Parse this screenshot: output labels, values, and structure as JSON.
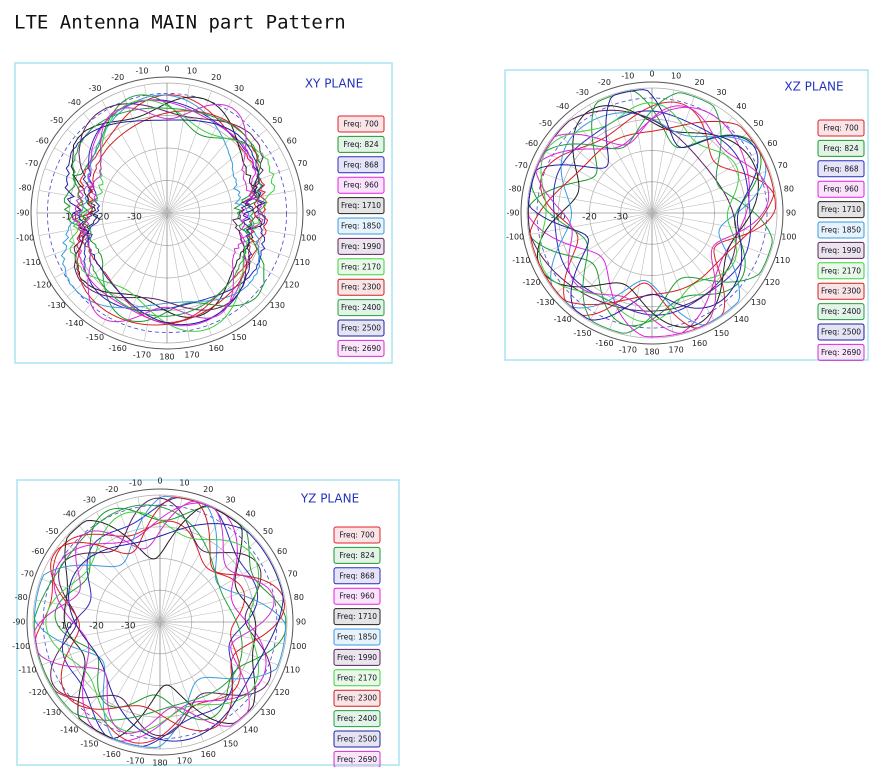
{
  "title": "LTE Antenna MAIN part Pattern",
  "angle_labels": [
    0,
    10,
    20,
    30,
    40,
    50,
    60,
    70,
    80,
    90,
    100,
    110,
    120,
    130,
    140,
    150,
    160,
    170,
    180,
    -170,
    -160,
    -150,
    -140,
    -130,
    -120,
    -110,
    -100,
    -90,
    -80,
    -70,
    -60,
    -50,
    -40,
    -30,
    -20,
    -10
  ],
  "radial_labels": [
    -10,
    -20,
    -30
  ],
  "panels": [
    {
      "plane": "XY PLANE"
    },
    {
      "plane": "XZ PLANE"
    },
    {
      "plane": "YZ PLANE"
    }
  ],
  "legend": [
    {
      "label": "Freq: 700",
      "color": "#e0202a"
    },
    {
      "label": "Freq: 824",
      "color": "#1a9a2a"
    },
    {
      "label": "Freq: 868",
      "color": "#2a2ac0"
    },
    {
      "label": "Freq: 960",
      "color": "#e020e0"
    },
    {
      "label": "Freq: 1710",
      "color": "#202020"
    },
    {
      "label": "Freq: 1850",
      "color": "#3a9ae0"
    },
    {
      "label": "Freq: 1990",
      "color": "#5a2060"
    },
    {
      "label": "Freq: 2170",
      "color": "#40d040"
    },
    {
      "label": "Freq: 2300",
      "color": "#d02020"
    },
    {
      "label": "Freq: 2400",
      "color": "#20a040"
    },
    {
      "label": "Freq: 2500",
      "color": "#2020a0"
    },
    {
      "label": "Freq: 2690",
      "color": "#d030d0"
    }
  ]
}
